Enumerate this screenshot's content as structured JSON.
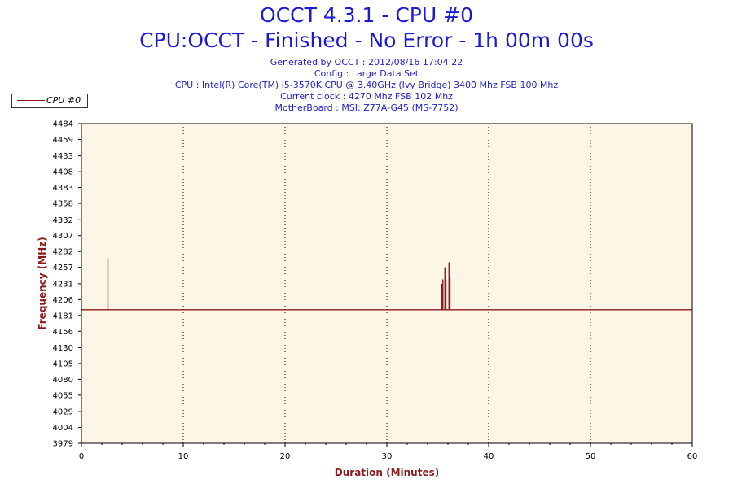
{
  "header": {
    "title": "OCCT 4.3.1 - CPU #0",
    "subtitle": "CPU:OCCT - Finished - No Error - 1h 00m 00s",
    "info": [
      "Generated by OCCT : 2012/08/16 17:04:22",
      "Config : Large Data Set",
      "CPU : Intel(R) Core(TM) i5-3570K CPU @ 3.40GHz (Ivy Bridge) 3400 Mhz FSB 100 Mhz",
      "Current clock : 4270 Mhz FSB 102 Mhz",
      "MotherBoard : MSI: Z77A-G45 (MS-7752)"
    ]
  },
  "chart_data": {
    "type": "line",
    "title": "OCCT 4.3.1 - CPU #0",
    "xlabel": "Duration (Minutes)",
    "ylabel": "Frequency (MHz)",
    "xlim": [
      0,
      60
    ],
    "ylim": [
      3979,
      4484
    ],
    "x_ticks": [
      "0",
      "10",
      "20",
      "30",
      "40",
      "50",
      "60"
    ],
    "y_ticks": [
      "4484",
      "4459",
      "4433",
      "4408",
      "4383",
      "4358",
      "4332",
      "4307",
      "4282",
      "4257",
      "4231",
      "4206",
      "4181",
      "4156",
      "4130",
      "4105",
      "4080",
      "4055",
      "4029",
      "4004",
      "3979"
    ],
    "grid": "vertical dotted",
    "legend_position": "top-left",
    "baseline": 4190,
    "series": [
      {
        "name": "CPU #0",
        "color": "#8b1a1a",
        "spikes": [
          {
            "x": 2.6,
            "y": 4271
          },
          {
            "x": 35.4,
            "y": 4231
          },
          {
            "x": 35.5,
            "y": 4238
          },
          {
            "x": 35.7,
            "y": 4257
          },
          {
            "x": 35.8,
            "y": 4238
          },
          {
            "x": 36.1,
            "y": 4265
          },
          {
            "x": 36.2,
            "y": 4241
          }
        ]
      }
    ],
    "colors": {
      "plot_background": "#fdf5e6",
      "axis_title": "#8b1a1a",
      "title": "#1a1ad6",
      "info": "#2222cc"
    }
  }
}
